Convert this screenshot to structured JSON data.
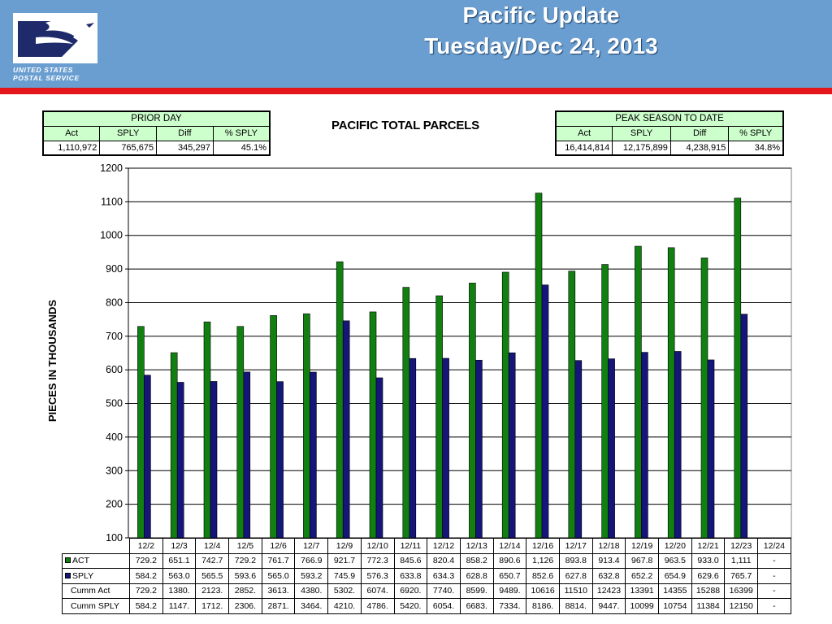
{
  "header": {
    "logo_line1": "UNITED STATES",
    "logo_line2": "POSTAL SERVICE",
    "title_line1": "Pacific Update",
    "title_line2": "Tuesday/Dec 24, 2013",
    "colors": {
      "background": "#6a9ed0",
      "stripe": "#e4161c",
      "logo": "#1f2a6b"
    }
  },
  "prior_day": {
    "title": "PRIOR DAY",
    "headers": [
      "Act",
      "SPLY",
      "Diff",
      "% SPLY"
    ],
    "values": [
      "1,110,972",
      "765,675",
      "345,297",
      "45.1%"
    ]
  },
  "peak_season": {
    "title": "PEAK SEASON TO DATE",
    "headers": [
      "Act",
      "SPLY",
      "Diff",
      "% SPLY"
    ],
    "values": [
      "16,414,814",
      "12,175,899",
      "4,238,915",
      "34.8%"
    ]
  },
  "chart_data": {
    "type": "bar",
    "title": "PACIFIC TOTAL PARCELS",
    "ylabel": "PIECES IN THOUSANDS",
    "xlabel": "",
    "ylim": [
      100,
      1200
    ],
    "yticks": [
      "100",
      "200",
      "300",
      "400",
      "500",
      "600",
      "700",
      "800",
      "900",
      "1000",
      "1100",
      "1200"
    ],
    "grid": true,
    "legend": "data-table",
    "categories": [
      "12/2",
      "12/3",
      "12/4",
      "12/5",
      "12/6",
      "12/7",
      "12/9",
      "12/10",
      "12/11",
      "12/12",
      "12/13",
      "12/14",
      "12/16",
      "12/17",
      "12/18",
      "12/19",
      "12/20",
      "12/21",
      "12/23",
      "12/24"
    ],
    "series": [
      {
        "name": "ACT",
        "color": "#118011",
        "values": [
          729.2,
          651.1,
          742.7,
          729.2,
          761.7,
          766.9,
          921.7,
          772.3,
          845.6,
          820.4,
          858.2,
          890.6,
          1126,
          893.8,
          913.4,
          967.8,
          963.5,
          933.0,
          1111,
          null
        ]
      },
      {
        "name": "SPLY",
        "color": "#15157a",
        "values": [
          584.2,
          563.0,
          565.5,
          593.6,
          565.0,
          593.2,
          745.9,
          576.3,
          633.8,
          634.3,
          628.8,
          650.7,
          852.6,
          627.8,
          632.8,
          652.2,
          654.9,
          629.6,
          765.7,
          null
        ]
      }
    ],
    "table": {
      "rows": [
        {
          "label": "ACT",
          "key": "act",
          "cells": [
            "729.2",
            "651.1",
            "742.7",
            "729.2",
            "761.7",
            "766.9",
            "921.7",
            "772.3",
            "845.6",
            "820.4",
            "858.2",
            "890.6",
            "1,126",
            "893.8",
            "913.4",
            "967.8",
            "963.5",
            "933.0",
            "1,111",
            "-"
          ]
        },
        {
          "label": "SPLY",
          "key": "sply",
          "cells": [
            "584.2",
            "563.0",
            "565.5",
            "593.6",
            "565.0",
            "593.2",
            "745.9",
            "576.3",
            "633.8",
            "634.3",
            "628.8",
            "650.7",
            "852.6",
            "627.8",
            "632.8",
            "652.2",
            "654.9",
            "629.6",
            "765.7",
            "-"
          ]
        },
        {
          "label": "Cumm Act",
          "key": "cumm-act",
          "cells": [
            "729.2",
            "1380.",
            "2123.",
            "2852.",
            "3613.",
            "4380.",
            "5302.",
            "6074.",
            "6920.",
            "7740.",
            "8599.",
            "9489.",
            "10616",
            "11510",
            "12423",
            "13391",
            "14355",
            "15288",
            "16399",
            "-"
          ]
        },
        {
          "label": "Cumm SPLY",
          "key": "cumm-sply",
          "cells": [
            "584.2",
            "1147.",
            "1712.",
            "2306.",
            "2871.",
            "3464.",
            "4210.",
            "4786.",
            "5420.",
            "6054.",
            "6683.",
            "7334.",
            "8186.",
            "8814.",
            "9447.",
            "10099",
            "10754",
            "11384",
            "12150",
            "-"
          ]
        }
      ]
    }
  }
}
